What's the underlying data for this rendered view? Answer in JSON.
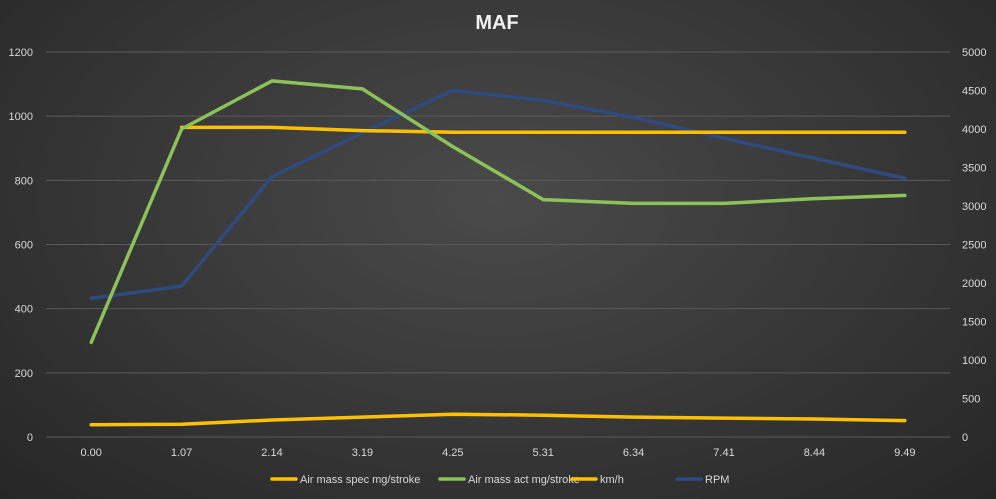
{
  "chart_data": {
    "type": "line",
    "title": "MAF",
    "x": [
      "0.00",
      "1.07",
      "2.14",
      "3.19",
      "4.25",
      "5.31",
      "6.34",
      "7.41",
      "8.44",
      "9.49"
    ],
    "y_left": {
      "ylim": [
        0,
        1200
      ],
      "ticks": [
        "0",
        "200",
        "400",
        "600",
        "800",
        "1000",
        "1200"
      ]
    },
    "y_right": {
      "ylim": [
        0,
        5000
      ],
      "ticks": [
        "0",
        "500",
        "1000",
        "1500",
        "2000",
        "2500",
        "3000",
        "3500",
        "4000",
        "4500",
        "5000"
      ]
    },
    "grid": true,
    "legend_position": "bottom",
    "series": [
      {
        "name": "Air mass spec mg/stroke",
        "axis": "left",
        "color": "#ffc000",
        "values": [
          null,
          965,
          965,
          955,
          950,
          950,
          950,
          950,
          950,
          950
        ]
      },
      {
        "name": "Air mass act mg/stroke",
        "axis": "left",
        "color": "#8dc25a",
        "values": [
          295,
          960,
          1110,
          1085,
          905,
          740,
          728,
          728,
          743,
          753
        ]
      },
      {
        "name": "km/h",
        "axis": "left",
        "color": "#ffc000",
        "values": [
          38,
          40,
          53,
          62,
          71,
          68,
          62,
          59,
          56,
          51
        ]
      },
      {
        "name": "RPM",
        "axis": "right",
        "color": "#2e4a7e",
        "values": [
          1800,
          1960,
          3380,
          3950,
          4500,
          4370,
          4150,
          3880,
          3620,
          3360
        ]
      }
    ]
  }
}
